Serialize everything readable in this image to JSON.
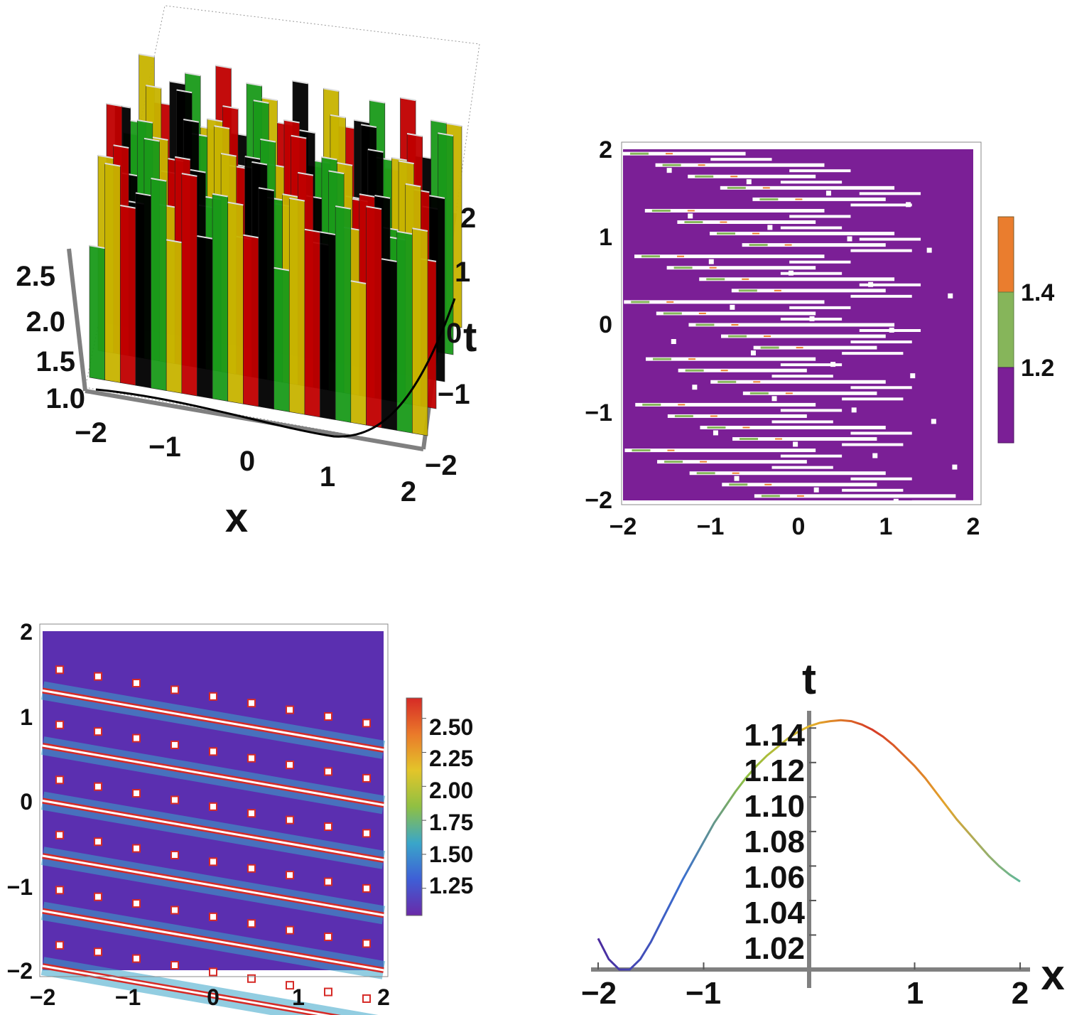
{
  "figure": {
    "panel_count": 4
  },
  "chart_data": [
    {
      "type": "surface3d",
      "panel": "top-left",
      "xlabel": "x",
      "ylabel": "t",
      "x_ticks": [
        "−2",
        "−1",
        "0",
        "1",
        "2"
      ],
      "t_ticks": [
        "2",
        "1",
        "0",
        "−1",
        "−2"
      ],
      "z_ticks": [
        "2.5",
        "2.0",
        "1.5",
        "1.0"
      ],
      "xlim": [
        -2,
        2
      ],
      "tlim": [
        -2,
        2
      ],
      "zlim": [
        1.0,
        2.6
      ],
      "surface_colors": [
        "#1a9a1a",
        "#c8b400",
        "#c00000",
        "#000000"
      ]
    },
    {
      "type": "contour",
      "panel": "top-right",
      "x_ticks": [
        "−2",
        "−1",
        "0",
        "1",
        "2"
      ],
      "y_ticks": [
        "2",
        "1",
        "0",
        "−1",
        "−2"
      ],
      "xlim": [
        -2,
        2
      ],
      "ylim": [
        -2,
        2
      ],
      "legend": {
        "labels": [
          "1.4",
          "1.2"
        ],
        "levels": [
          {
            "from": 1.0,
            "to": 1.2,
            "color": "#7b1f96"
          },
          {
            "from": 1.2,
            "to": 1.4,
            "color": "#86b55a"
          },
          {
            "from": 1.4,
            "to": 1.6,
            "color": "#ea7d2e"
          }
        ]
      },
      "stripe_rows_t": [
        1.95,
        1.82,
        1.69,
        1.56,
        1.43,
        1.3,
        1.17,
        1.04,
        0.91,
        0.78,
        0.65,
        0.52,
        0.39,
        0.26,
        0.13,
        0.0,
        -0.13,
        -0.26,
        -0.39,
        -0.52,
        -0.65,
        -0.78,
        -0.91,
        -1.04,
        -1.17,
        -1.3,
        -1.43,
        -1.56,
        -1.69,
        -1.82,
        -1.95
      ]
    },
    {
      "type": "heatmap",
      "panel": "bottom-left",
      "x_ticks": [
        "−2",
        "−1",
        "0",
        "1",
        "2"
      ],
      "y_ticks": [
        "2",
        "1",
        "0",
        "−1",
        "−2"
      ],
      "xlim": [
        -2,
        2
      ],
      "ylim": [
        -2,
        2
      ],
      "colorbar": {
        "labels": [
          "2.50",
          "2.25",
          "2.00",
          "1.75",
          "1.50",
          "1.25"
        ],
        "values": [
          2.5,
          2.25,
          2.0,
          1.75,
          1.5,
          1.25
        ],
        "range": [
          1.05,
          2.65
        ],
        "colors": [
          "#6a2aa8",
          "#3e5fd6",
          "#3aa6c9",
          "#8fc043",
          "#e3c52a",
          "#ea7a2a",
          "#d62a26"
        ]
      },
      "bright_bands": [
        {
          "x0": -2.0,
          "t0": 1.3,
          "slope": -0.175
        },
        {
          "x0": -2.0,
          "t0": 0.0,
          "slope": -0.175
        },
        {
          "x0": -2.0,
          "t0": -1.3,
          "slope": -0.175
        }
      ]
    },
    {
      "type": "line",
      "panel": "bottom-right",
      "xlabel": "x",
      "ylabel": "t",
      "x_ticks": [
        "−2",
        "−1",
        "1",
        "2"
      ],
      "y_ticks": [
        "1.14",
        "1.12",
        "1.10",
        "1.08",
        "1.06",
        "1.04",
        "1.02"
      ],
      "xlim": [
        -2.0,
        2.0
      ],
      "ylim": [
        1.0,
        1.15
      ],
      "x": [
        -2.0,
        -1.9,
        -1.8,
        -1.7,
        -1.6,
        -1.5,
        -1.4,
        -1.3,
        -1.2,
        -1.1,
        -1.0,
        -0.9,
        -0.8,
        -0.7,
        -0.6,
        -0.5,
        -0.4,
        -0.3,
        -0.2,
        -0.1,
        0.0,
        0.1,
        0.2,
        0.3,
        0.4,
        0.5,
        0.6,
        0.7,
        0.8,
        0.9,
        1.0,
        1.1,
        1.2,
        1.3,
        1.4,
        1.5,
        1.6,
        1.7,
        1.8,
        1.9,
        2.0
      ],
      "y": [
        1.018,
        1.006,
        1.0,
        1.0,
        1.006,
        1.016,
        1.028,
        1.04,
        1.052,
        1.063,
        1.074,
        1.085,
        1.094,
        1.103,
        1.111,
        1.118,
        1.124,
        1.129,
        1.134,
        1.138,
        1.141,
        1.143,
        1.144,
        1.1445,
        1.144,
        1.142,
        1.139,
        1.135,
        1.13,
        1.124,
        1.118,
        1.111,
        1.103,
        1.095,
        1.087,
        1.08,
        1.073,
        1.066,
        1.06,
        1.055,
        1.051
      ]
    }
  ]
}
